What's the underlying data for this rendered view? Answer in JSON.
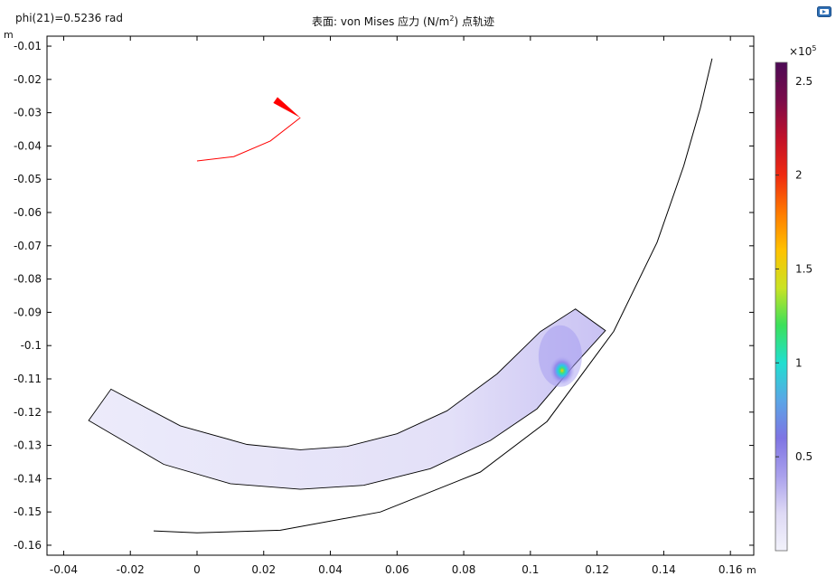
{
  "header": {
    "param_label": "phi(21)=0.5236 rad",
    "title_prefix": "表面: von Mises 应力 (N/m",
    "title_sup": "2",
    "title_suffix": ") 点轨迹"
  },
  "chart_data": {
    "type": "surface-plot",
    "x_unit": "m",
    "y_unit": "m",
    "xlim": [
      -0.045,
      0.167
    ],
    "ylim": [
      -0.163,
      -0.007
    ],
    "x_ticks": [
      {
        "v": -0.04,
        "label": "-0.04"
      },
      {
        "v": -0.02,
        "label": "-0.02"
      },
      {
        "v": 0,
        "label": "0"
      },
      {
        "v": 0.02,
        "label": "0.02"
      },
      {
        "v": 0.04,
        "label": "0.04"
      },
      {
        "v": 0.06,
        "label": "0.06"
      },
      {
        "v": 0.08,
        "label": "0.08"
      },
      {
        "v": 0.1,
        "label": "0.1"
      },
      {
        "v": 0.12,
        "label": "0.12"
      },
      {
        "v": 0.14,
        "label": "0.14"
      },
      {
        "v": 0.16,
        "label": "0.16"
      }
    ],
    "y_ticks": [
      {
        "v": -0.01,
        "label": "-0.01"
      },
      {
        "v": -0.02,
        "label": "-0.02"
      },
      {
        "v": -0.03,
        "label": "-0.03"
      },
      {
        "v": -0.04,
        "label": "-0.04"
      },
      {
        "v": -0.05,
        "label": "-0.05"
      },
      {
        "v": -0.06,
        "label": "-0.06"
      },
      {
        "v": -0.07,
        "label": "-0.07"
      },
      {
        "v": -0.08,
        "label": "-0.08"
      },
      {
        "v": -0.09,
        "label": "-0.09"
      },
      {
        "v": -0.1,
        "label": "-0.1"
      },
      {
        "v": -0.11,
        "label": "-0.11"
      },
      {
        "v": -0.12,
        "label": "-0.12"
      },
      {
        "v": -0.13,
        "label": "-0.13"
      },
      {
        "v": -0.14,
        "label": "-0.14"
      },
      {
        "v": -0.15,
        "label": "-0.15"
      },
      {
        "v": -0.16,
        "label": "-0.16"
      }
    ],
    "point_trajectory": {
      "color": "#ff0000",
      "points": [
        [
          0.0,
          -0.0445
        ],
        [
          0.011,
          -0.0432
        ],
        [
          0.022,
          -0.0385
        ],
        [
          0.031,
          -0.0315
        ]
      ],
      "arrow_tip": [
        0.031,
        -0.0315
      ],
      "arrow_tail": [
        0.0235,
        -0.0262
      ]
    },
    "outer_arc": {
      "color": "#000000",
      "points": [
        [
          -0.013,
          -0.1557
        ],
        [
          0.0,
          -0.1563
        ],
        [
          0.025,
          -0.1555
        ],
        [
          0.055,
          -0.15
        ],
        [
          0.085,
          -0.138
        ],
        [
          0.105,
          -0.1228
        ],
        [
          0.125,
          -0.0957
        ],
        [
          0.138,
          -0.069
        ],
        [
          0.146,
          -0.046
        ],
        [
          0.151,
          -0.0285
        ],
        [
          0.1545,
          -0.0137
        ]
      ]
    },
    "blade_inner_edge": [
      [
        -0.0258,
        -0.1131
      ],
      [
        -0.005,
        -0.1241
      ],
      [
        0.015,
        -0.1297
      ],
      [
        0.031,
        -0.1313
      ],
      [
        0.045,
        -0.1303
      ],
      [
        0.06,
        -0.1265
      ],
      [
        0.075,
        -0.1196
      ],
      [
        0.09,
        -0.1085
      ],
      [
        0.103,
        -0.0958
      ],
      [
        0.1135,
        -0.089
      ]
    ],
    "blade_outer_edge": [
      [
        -0.0325,
        -0.1225
      ],
      [
        -0.01,
        -0.1357
      ],
      [
        0.01,
        -0.1415
      ],
      [
        0.031,
        -0.1432
      ],
      [
        0.05,
        -0.142
      ],
      [
        0.07,
        -0.137
      ],
      [
        0.088,
        -0.1285
      ],
      [
        0.102,
        -0.119
      ],
      [
        0.113,
        -0.106
      ],
      [
        0.1225,
        -0.0955
      ]
    ],
    "stress_hotspot": [
      0.1095,
      -0.1075
    ],
    "colorbar": {
      "multiplier_base": "×10",
      "multiplier_exp": "5",
      "min": 0,
      "max": 2.6,
      "ticks": [
        {
          "v": 0.5,
          "label": "0.5"
        },
        {
          "v": 1.0,
          "label": "1"
        },
        {
          "v": 1.5,
          "label": "1.5"
        },
        {
          "v": 2.0,
          "label": "2"
        },
        {
          "v": 2.5,
          "label": "2.5"
        }
      ],
      "colors": [
        "#f2f2fb",
        "#ded9f5",
        "#a9a0ec",
        "#7e74e3",
        "#5aa6e6",
        "#20dfd0",
        "#3be05a",
        "#c9e324",
        "#ffc200",
        "#ff7a00",
        "#ef2a10",
        "#c0102a",
        "#7a0b4a",
        "#4c0a55"
      ]
    }
  }
}
